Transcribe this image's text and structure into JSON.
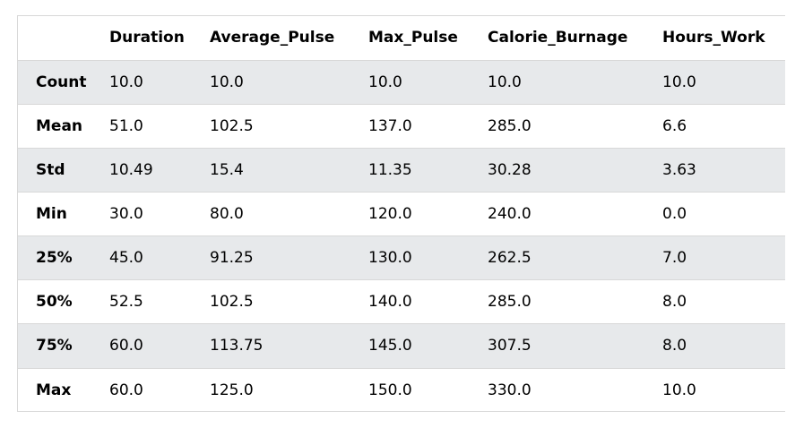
{
  "chart_data": {
    "type": "table",
    "columns": [
      "",
      "Duration",
      "Average_Pulse",
      "Max_Pulse",
      "Calorie_Burnage",
      "Hours_Work"
    ],
    "rows": [
      {
        "label": "Count",
        "values": [
          "10.0",
          "10.0",
          "10.0",
          "10.0",
          "10.0"
        ]
      },
      {
        "label": "Mean",
        "values": [
          "51.0",
          "102.5",
          "137.0",
          "285.0",
          "6.6"
        ]
      },
      {
        "label": "Std",
        "values": [
          "10.49",
          "15.4",
          "11.35",
          "30.28",
          "3.63"
        ]
      },
      {
        "label": "Min",
        "values": [
          "30.0",
          "80.0",
          "120.0",
          "240.0",
          "0.0"
        ]
      },
      {
        "label": "25%",
        "values": [
          "45.0",
          "91.25",
          "130.0",
          "262.5",
          "7.0"
        ]
      },
      {
        "label": "50%",
        "values": [
          "52.5",
          "102.5",
          "140.0",
          "285.0",
          "8.0"
        ]
      },
      {
        "label": "75%",
        "values": [
          "60.0",
          "113.75",
          "145.0",
          "307.5",
          "8.0"
        ]
      },
      {
        "label": "Max",
        "values": [
          "60.0",
          "125.0",
          "150.0",
          "330.0",
          "10.0"
        ]
      }
    ]
  },
  "colors": {
    "stripe": "#e7e9eb",
    "border": "#d8d8d8",
    "text": "#000000"
  }
}
